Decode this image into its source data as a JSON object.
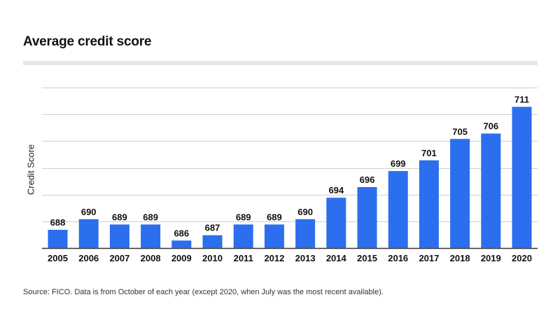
{
  "chart_data": {
    "type": "bar",
    "title": "Average credit score",
    "xlabel": "",
    "ylabel": "Credit Score",
    "categories": [
      "2005",
      "2006",
      "2007",
      "2008",
      "2009",
      "2010",
      "2011",
      "2012",
      "2013",
      "2014",
      "2015",
      "2016",
      "2017",
      "2018",
      "2019",
      "2020"
    ],
    "values": [
      688,
      690,
      689,
      689,
      686,
      687,
      689,
      689,
      690,
      694,
      696,
      699,
      701,
      705,
      706,
      711
    ],
    "ylim": [
      684.6,
      714.6
    ],
    "gridlines": [
      684.6,
      689.6,
      694.6,
      699.6,
      704.6,
      709.6,
      714.6
    ],
    "grid": true,
    "legend": "none",
    "bar_color": "#2b6fef",
    "source": "Source: FICO. Data is from October of each year (except 2020, when July was the most recent available)."
  }
}
